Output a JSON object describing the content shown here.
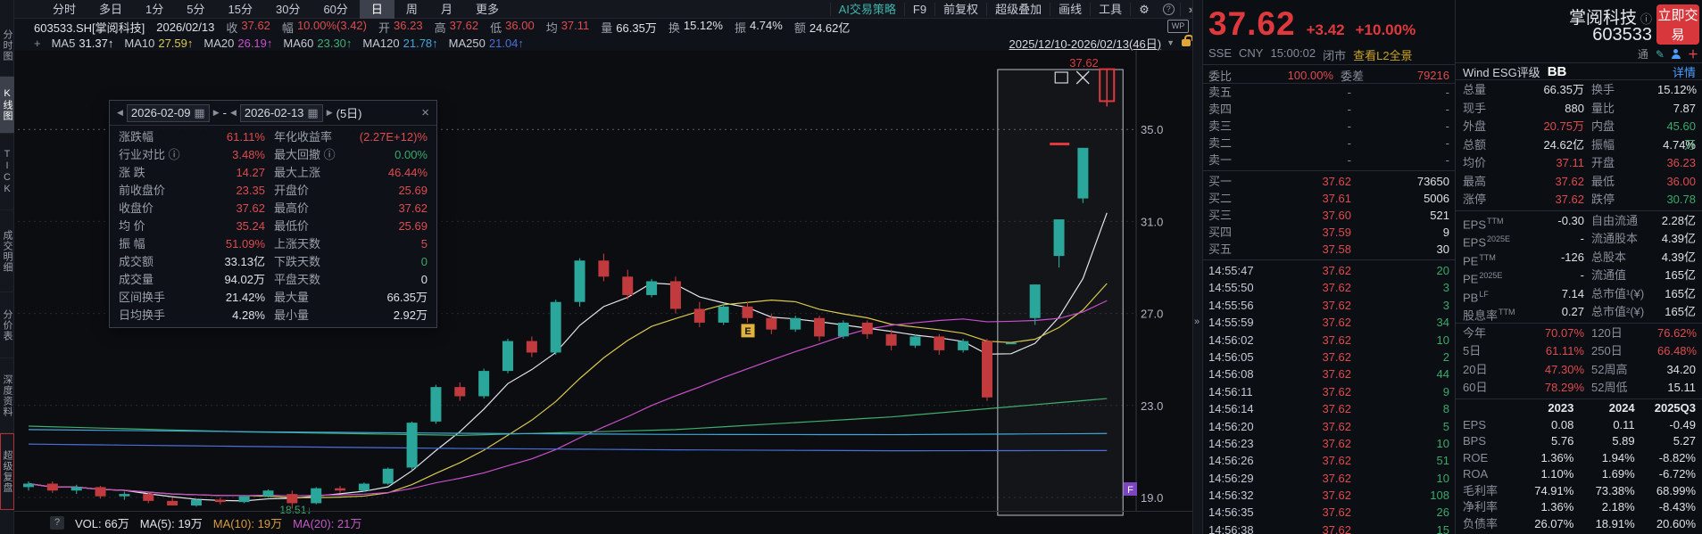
{
  "toolbar": {
    "periods": [
      "分时",
      "多日",
      "1分",
      "5分",
      "15分",
      "30分",
      "60分",
      "日",
      "周",
      "月",
      "更多"
    ],
    "active_period": "日",
    "right_items": [
      "AI交易策略",
      "F9",
      "前复权",
      "超级叠加",
      "画线",
      "工具"
    ],
    "gear_icon": "⚙",
    "help_icon": "?",
    "collapse_icon": "»"
  },
  "info_row": {
    "code": "603533.SH[掌阅科技]",
    "date": "2026/02/13",
    "fields": [
      {
        "l": "收",
        "v": "37.62",
        "c": "red"
      },
      {
        "l": "幅",
        "v": "10.00%(3.42)",
        "c": "red"
      },
      {
        "l": "开",
        "v": "36.23",
        "c": "red"
      },
      {
        "l": "高",
        "v": "37.62",
        "c": "red"
      },
      {
        "l": "低",
        "v": "36.00",
        "c": "red"
      },
      {
        "l": "均",
        "v": "37.11",
        "c": "red"
      },
      {
        "l": "量",
        "v": "66.35万",
        "c": "white"
      },
      {
        "l": "换",
        "v": "15.12%",
        "c": "white"
      },
      {
        "l": "振",
        "v": "4.74%",
        "c": "white"
      },
      {
        "l": "额",
        "v": "24.62亿",
        "c": "white"
      }
    ],
    "wp_badge": "WP"
  },
  "ma_row": {
    "add_icon": "+",
    "items": [
      {
        "l": "MA5",
        "v": "31.37↑",
        "color": "#e2e5ea"
      },
      {
        "l": "MA10",
        "v": "27.59↑",
        "color": "#d8c84e"
      },
      {
        "l": "MA20",
        "v": "26.19↑",
        "color": "#cb4ecb"
      },
      {
        "l": "MA60",
        "v": "23.30↑",
        "color": "#3fae6e"
      },
      {
        "l": "MA120",
        "v": "21.78↑",
        "color": "#41a6d9"
      },
      {
        "l": "MA250",
        "v": "21.04↑",
        "color": "#4a6fd8"
      }
    ],
    "range": "2025/12/10-2026/02/13(46日)",
    "dropdown_icon": "▼"
  },
  "sidebar": {
    "tabs": [
      "分时图",
      "K线图",
      "TICK",
      "成交明细",
      "分价表",
      "深度资料",
      "超级复盘"
    ],
    "active": "K线图"
  },
  "popup": {
    "start_date": "2026-02-09",
    "end_date": "2026-02-13",
    "days_label": "(5日)",
    "prev_icon": "◀",
    "next_icon": "▶",
    "calendar_icon": "▦",
    "close_icon": "×",
    "rows": [
      {
        "l1": "涨跌幅",
        "v1": "61.11%",
        "c1": "red",
        "l2": "年化收益率",
        "v2": "(2.27E+12)%",
        "c2": "red"
      },
      {
        "l1": "行业对比 ⓘ",
        "v1": "3.48%",
        "c1": "red",
        "l2": "最大回撤 ⓘ",
        "v2": "0.00%",
        "c2": "green"
      },
      {
        "l1": "涨 跌",
        "v1": "14.27",
        "c1": "red",
        "l2": "最大上涨",
        "v2": "46.44%",
        "c2": "red"
      },
      {
        "l1": "前收盘价",
        "v1": "23.35",
        "c1": "red",
        "l2": "开盘价",
        "v2": "25.69",
        "c2": "red"
      },
      {
        "l1": "收盘价",
        "v1": "37.62",
        "c1": "red",
        "l2": "最高价",
        "v2": "37.62",
        "c2": "red"
      },
      {
        "l1": "均 价",
        "v1": "35.24",
        "c1": "red",
        "l2": "最低价",
        "v2": "25.69",
        "c2": "red"
      },
      {
        "l1": "振 幅",
        "v1": "51.09%",
        "c1": "red",
        "l2": "上涨天数",
        "v2": "5",
        "c2": "red"
      },
      {
        "l1": "成交额",
        "v1": "33.13亿",
        "c1": "white",
        "l2": "下跌天数",
        "v2": "0",
        "c2": "green"
      },
      {
        "l1": "成交量",
        "v1": "94.02万",
        "c1": "white",
        "l2": "平盘天数",
        "v2": "0",
        "c2": "white"
      },
      {
        "l1": "区间换手",
        "v1": "21.42%",
        "c1": "white",
        "l2": "最大量",
        "v2": "66.35万",
        "c2": "white"
      },
      {
        "l1": "日均换手",
        "v1": "4.28%",
        "c1": "white",
        "l2": "最小量",
        "v2": "2.92万",
        "c2": "white"
      }
    ]
  },
  "chart_data": {
    "type": "candlestick",
    "code": "603533.SH",
    "period": "日K",
    "range": "2025/12/10-2026/02/13",
    "days": 46,
    "y_axis_labels": [
      {
        "t": "35.0",
        "p": 35
      },
      {
        "t": "31.0",
        "p": 31
      },
      {
        "t": "27.0",
        "p": 27
      },
      {
        "t": "23.0",
        "p": 23
      },
      {
        "t": "19.0",
        "p": 19
      }
    ],
    "candles": [
      [
        19.45,
        19.7,
        19.3,
        19.6
      ],
      [
        19.6,
        19.7,
        19.2,
        19.3
      ],
      [
        19.3,
        19.55,
        19.15,
        19.45
      ],
      [
        19.45,
        19.5,
        18.95,
        19.05
      ],
      [
        19.05,
        19.25,
        18.9,
        19.15
      ],
      [
        19.15,
        19.2,
        18.75,
        18.85
      ],
      [
        18.85,
        19.0,
        18.7,
        18.65
      ],
      [
        18.65,
        18.95,
        18.6,
        18.9
      ],
      [
        18.9,
        19.0,
        18.7,
        18.8
      ],
      [
        18.8,
        19.1,
        18.75,
        19.05
      ],
      [
        19.05,
        19.35,
        19.0,
        19.3
      ],
      [
        19.15,
        19.3,
        18.51,
        18.75
      ],
      [
        18.75,
        19.45,
        18.7,
        19.4
      ],
      [
        19.4,
        19.5,
        19.2,
        19.3
      ],
      [
        19.3,
        19.65,
        19.25,
        19.6
      ],
      [
        19.6,
        20.3,
        19.55,
        20.25
      ],
      [
        20.3,
        22.3,
        20.2,
        22.25
      ],
      [
        22.3,
        23.9,
        22.2,
        23.8
      ],
      [
        23.8,
        24.0,
        23.2,
        23.4
      ],
      [
        23.4,
        24.6,
        23.3,
        24.5
      ],
      [
        24.5,
        25.9,
        24.4,
        25.8
      ],
      [
        25.8,
        26.0,
        25.1,
        25.3
      ],
      [
        25.3,
        27.6,
        25.2,
        27.5
      ],
      [
        27.5,
        29.4,
        27.3,
        29.3
      ],
      [
        29.3,
        29.6,
        28.4,
        28.6
      ],
      [
        28.6,
        28.9,
        27.6,
        27.8
      ],
      [
        27.8,
        28.5,
        27.7,
        28.4
      ],
      [
        28.4,
        28.6,
        27.0,
        27.2
      ],
      [
        27.2,
        27.5,
        26.4,
        26.6
      ],
      [
        26.6,
        27.4,
        26.5,
        27.3
      ],
      [
        27.3,
        27.5,
        26.6,
        26.8
      ],
      [
        26.8,
        27.0,
        26.1,
        26.3
      ],
      [
        26.3,
        26.9,
        26.2,
        26.8
      ],
      [
        26.8,
        26.9,
        25.8,
        26.0
      ],
      [
        26.0,
        26.7,
        25.9,
        26.6
      ],
      [
        26.6,
        26.7,
        25.9,
        26.1
      ],
      [
        26.1,
        26.3,
        25.4,
        25.6
      ],
      [
        25.6,
        26.1,
        25.5,
        26.0
      ],
      [
        26.0,
        26.1,
        25.2,
        25.4
      ],
      [
        25.4,
        25.9,
        25.3,
        25.8
      ],
      [
        25.8,
        25.9,
        23.2,
        23.35
      ],
      [
        25.69,
        25.69,
        25.69,
        25.69
      ],
      [
        26.8,
        28.26,
        26.5,
        28.26
      ],
      [
        29.5,
        31.09,
        29.0,
        31.09
      ],
      [
        32.0,
        34.2,
        31.8,
        34.2
      ],
      [
        36.23,
        37.62,
        36.0,
        37.62
      ]
    ],
    "ma_computed": [
      {
        "name": "MA5",
        "period": 5,
        "color": "#e2e5ea"
      },
      {
        "name": "MA10",
        "period": 10,
        "color": "#d8c84e"
      },
      {
        "name": "MA20",
        "period": 20,
        "color": "#cb4ecb"
      }
    ],
    "ma_overlays": [
      {
        "name": "MA60",
        "color": "#3fae6e",
        "points": [
          22.1,
          21.85,
          21.7,
          21.95,
          22.5,
          23.3
        ]
      },
      {
        "name": "MA120",
        "color": "#41a6d9",
        "points": [
          21.95,
          21.86,
          21.79,
          21.74,
          21.73,
          21.78
        ]
      },
      {
        "name": "MA250",
        "color": "#4a6fd8",
        "points": [
          21.32,
          21.22,
          21.13,
          21.07,
          21.03,
          21.04
        ]
      }
    ],
    "selection": {
      "start_index": 41,
      "end_index": 45,
      "price_label": "37.62"
    },
    "markers": {
      "low_label": "18.51↓",
      "low_index": 11,
      "event_badge": "E",
      "event_index": 30,
      "event_price": 26.0,
      "flag_badge": "F"
    },
    "colors": {
      "up": "#2aa79a",
      "down": "#c13b3e",
      "highlight": "#e0393d"
    },
    "volume_row": {
      "help_icon": "?",
      "vol": "VOL: 66万",
      "ma5": "MA(5): 19万",
      "ma10": "MA(10): 19万",
      "ma20": "MA(20): 21万"
    }
  },
  "quote": {
    "price": "37.62",
    "change": "+3.42",
    "pct": "+10.00%",
    "name": "掌阅科技",
    "info_icon": "ⓘ",
    "code": "603533",
    "trade_button": "立即交易",
    "exchange": "SSE",
    "currency": "CNY",
    "time": "15:00:02",
    "status": "闭市",
    "l2_link": "查看L2全景",
    "mini_icon_tong": "通",
    "mini_icon_pencil": "✎",
    "mini_icon_plus": "＋"
  },
  "order_book": {
    "wb_label": "委比",
    "wb_value": "100.00%",
    "wc_label": "委差",
    "wc_value": "79216",
    "sells": [
      {
        "l": "卖五",
        "p": "-",
        "v": "-"
      },
      {
        "l": "卖四",
        "p": "-",
        "v": "-"
      },
      {
        "l": "卖三",
        "p": "-",
        "v": "-"
      },
      {
        "l": "卖二",
        "p": "-",
        "v": "-"
      },
      {
        "l": "卖一",
        "p": "-",
        "v": "-"
      }
    ],
    "buys": [
      {
        "l": "买一",
        "p": "37.62",
        "v": "73650"
      },
      {
        "l": "买二",
        "p": "37.61",
        "v": "5006"
      },
      {
        "l": "买三",
        "p": "37.60",
        "v": "521"
      },
      {
        "l": "买四",
        "p": "37.59",
        "v": "9"
      },
      {
        "l": "买五",
        "p": "37.58",
        "v": "30"
      }
    ]
  },
  "ticks": [
    {
      "t": "14:55:47",
      "p": "37.62",
      "v": "20"
    },
    {
      "t": "14:55:50",
      "p": "37.62",
      "v": "3"
    },
    {
      "t": "14:55:56",
      "p": "37.62",
      "v": "3"
    },
    {
      "t": "14:55:59",
      "p": "37.62",
      "v": "34"
    },
    {
      "t": "14:56:02",
      "p": "37.62",
      "v": "10"
    },
    {
      "t": "14:56:05",
      "p": "37.62",
      "v": "2"
    },
    {
      "t": "14:56:08",
      "p": "37.62",
      "v": "44"
    },
    {
      "t": "14:56:11",
      "p": "37.62",
      "v": "9"
    },
    {
      "t": "14:56:14",
      "p": "37.62",
      "v": "8"
    },
    {
      "t": "14:56:20",
      "p": "37.62",
      "v": "5"
    },
    {
      "t": "14:56:23",
      "p": "37.62",
      "v": "10"
    },
    {
      "t": "14:56:26",
      "p": "37.62",
      "v": "51"
    },
    {
      "t": "14:56:29",
      "p": "37.62",
      "v": "10"
    },
    {
      "t": "14:56:32",
      "p": "37.62",
      "v": "108"
    },
    {
      "t": "14:56:35",
      "p": "37.62",
      "v": "26"
    },
    {
      "t": "14:56:38",
      "p": "37.62",
      "v": "15"
    }
  ],
  "stats": {
    "esg_label": "Wind ESG评级",
    "esg_value": "BB",
    "esg_link": "详情",
    "groups": [
      [
        {
          "l1": "总量",
          "v1": "66.35万",
          "c1": "white",
          "l2": "换手",
          "v2": "15.12%",
          "c2": "white"
        },
        {
          "l1": "现手",
          "v1": "880",
          "c1": "white",
          "l2": "量比",
          "v2": "7.87",
          "c2": "white"
        },
        {
          "l1": "外盘",
          "v1": "20.75万",
          "c1": "red",
          "l2": "内盘",
          "v2": "45.60万",
          "c2": "green"
        },
        {
          "l1": "总额",
          "v1": "24.62亿",
          "c1": "white",
          "l2": "振幅",
          "v2": "4.74%",
          "c2": "white"
        },
        {
          "l1": "均价",
          "v1": "37.11",
          "c1": "red",
          "l2": "开盘",
          "v2": "36.23",
          "c2": "red"
        },
        {
          "l1": "最高",
          "v1": "37.62",
          "c1": "red",
          "l2": "最低",
          "v2": "36.00",
          "c2": "red"
        },
        {
          "l1": "涨停",
          "v1": "37.62",
          "c1": "red",
          "l2": "跌停",
          "v2": "30.78",
          "c2": "green"
        }
      ],
      [
        {
          "l1": "EPS",
          "s1": "TTM",
          "v1": "-0.30",
          "c1": "white",
          "l2": "自由流通",
          "v2": "2.28亿",
          "c2": "white"
        },
        {
          "l1": "EPS",
          "s1": "2025E",
          "v1": "-",
          "c1": "white",
          "l2": "流通股本",
          "v2": "4.39亿",
          "c2": "white"
        },
        {
          "l1": "PE",
          "s1": "TTM",
          "v1": "-126",
          "c1": "white",
          "l2": "总股本",
          "v2": "4.39亿",
          "c2": "white"
        },
        {
          "l1": "PE",
          "s1": "2025E",
          "v1": "-",
          "c1": "white",
          "l2": "流通值",
          "v2": "165亿",
          "c2": "white"
        },
        {
          "l1": "PB",
          "s1": "LF",
          "v1": "7.14",
          "c1": "white",
          "l2": "总市值¹(¥)",
          "v2": "165亿",
          "c2": "white"
        },
        {
          "l1": "股息率",
          "s1": "TTM",
          "v1": "0.27",
          "c1": "white",
          "l2": "总市值²(¥)",
          "v2": "165亿",
          "c2": "white"
        }
      ],
      [
        {
          "l1": "今年",
          "v1": "70.07%",
          "c1": "red",
          "l2": "120日",
          "v2": "76.62%",
          "c2": "red"
        },
        {
          "l1": "5日",
          "v1": "61.11%",
          "c1": "red",
          "l2": "250日",
          "v2": "66.48%",
          "c2": "red"
        },
        {
          "l1": "20日",
          "v1": "47.30%",
          "c1": "red",
          "l2": "52周高",
          "v2": "34.20",
          "c2": "white"
        },
        {
          "l1": "60日",
          "v1": "78.29%",
          "c1": "red",
          "l2": "52周低",
          "v2": "15.11",
          "c2": "white"
        }
      ]
    ]
  },
  "fin_table": {
    "cols": [
      "2023",
      "2024",
      "2025Q3"
    ],
    "rows": [
      {
        "n": "EPS",
        "v": [
          "0.08",
          "0.11",
          "-0.49"
        ]
      },
      {
        "n": "BPS",
        "v": [
          "5.76",
          "5.89",
          "5.27"
        ]
      },
      {
        "n": "ROE",
        "v": [
          "1.36%",
          "1.94%",
          "-8.82%"
        ]
      },
      {
        "n": "ROA",
        "v": [
          "1.10%",
          "1.69%",
          "-6.72%"
        ]
      },
      {
        "n": "毛利率",
        "v": [
          "74.91%",
          "73.38%",
          "68.99%"
        ]
      },
      {
        "n": "净利率",
        "v": [
          "1.36%",
          "2.18%",
          "-8.43%"
        ]
      },
      {
        "n": "负债率",
        "v": [
          "26.07%",
          "18.91%",
          "20.60%"
        ]
      }
    ]
  }
}
